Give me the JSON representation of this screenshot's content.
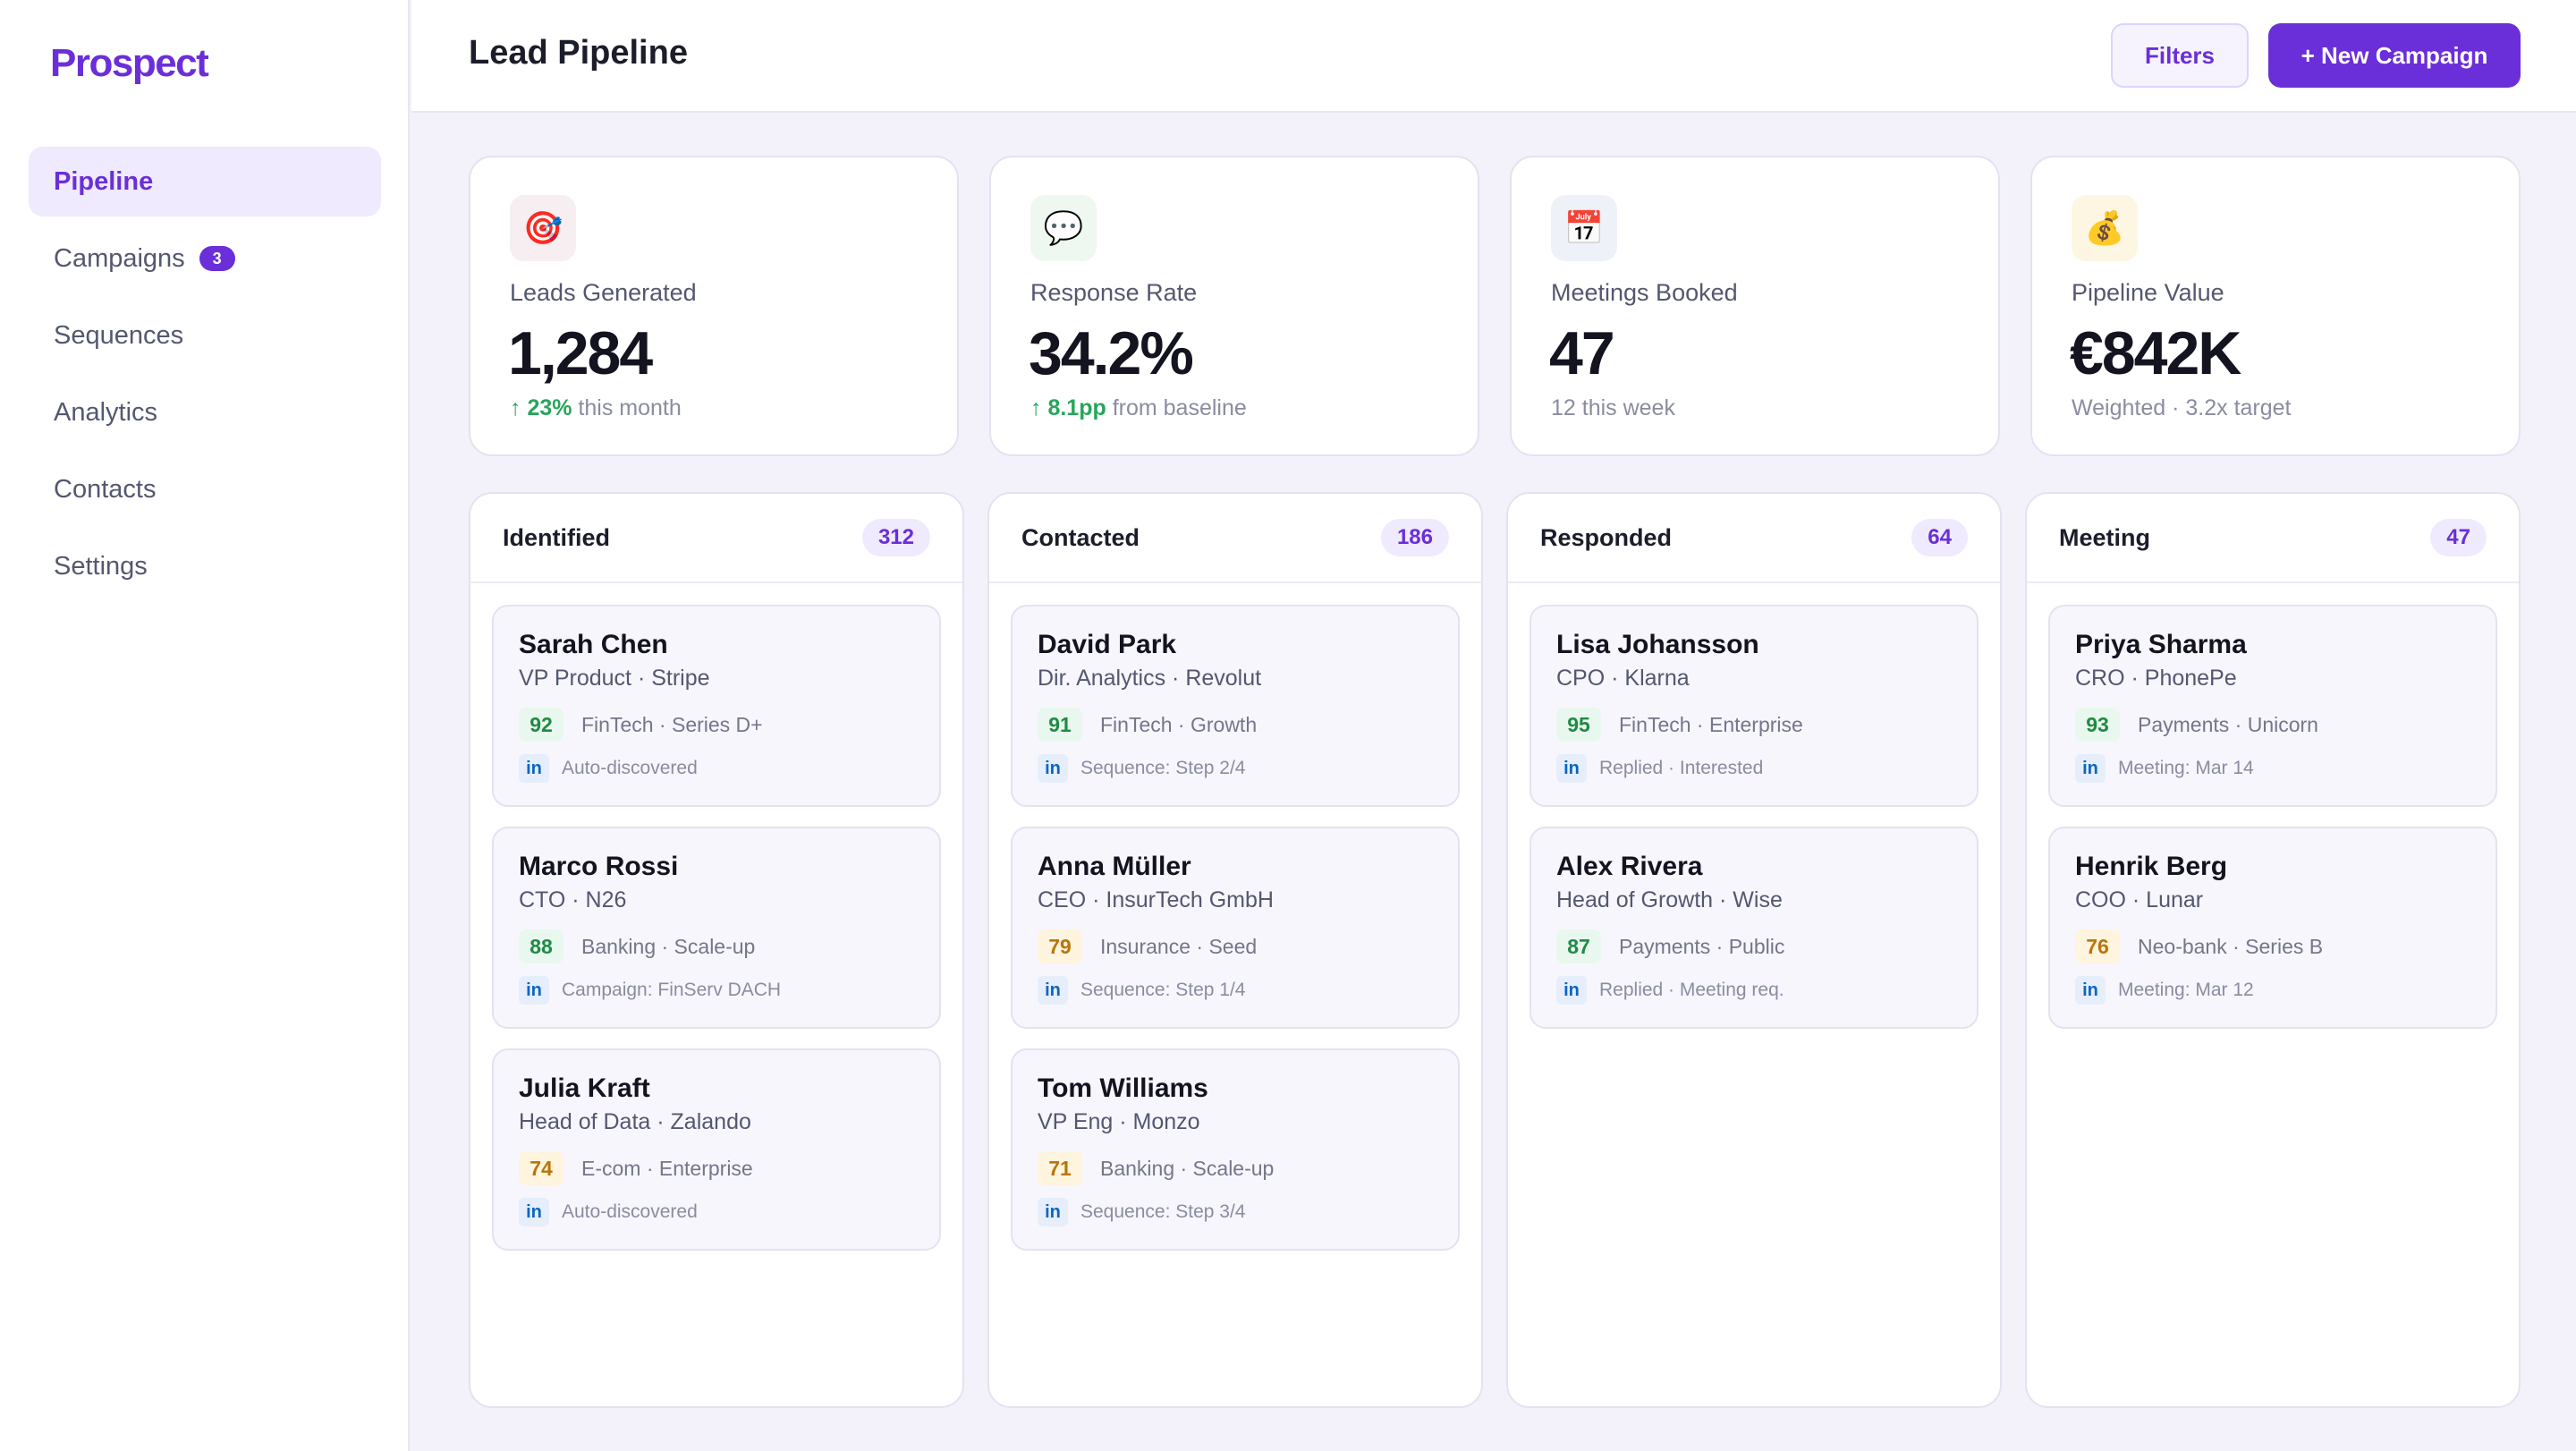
{
  "app": {
    "name": "Prospect"
  },
  "sidebar": {
    "items": [
      {
        "label": "Pipeline",
        "active": true
      },
      {
        "label": "Campaigns",
        "badge": "3"
      },
      {
        "label": "Sequences"
      },
      {
        "label": "Analytics"
      },
      {
        "label": "Contacts"
      },
      {
        "label": "Settings"
      }
    ]
  },
  "header": {
    "title": "Lead Pipeline",
    "filters_label": "Filters",
    "new_campaign_label": "+ New Campaign"
  },
  "stats": [
    {
      "icon": "target-icon",
      "glyph": "🎯",
      "label": "Leads Generated",
      "value": "1,284",
      "delta": "↑ 23%",
      "sub": " this month"
    },
    {
      "icon": "speech-bubble-icon",
      "glyph": "💬",
      "label": "Response Rate",
      "value": "34.2%",
      "delta": "↑ 8.1pp",
      "sub": " from baseline"
    },
    {
      "icon": "calendar-icon",
      "glyph": "📅",
      "label": "Meetings Booked",
      "value": "47",
      "delta": "",
      "sub": "12 this week"
    },
    {
      "icon": "money-bag-icon",
      "glyph": "💰",
      "label": "Pipeline Value",
      "value": "€842K",
      "delta": "",
      "sub": "Weighted · 3.2x target"
    }
  ],
  "columns": [
    {
      "title": "Identified",
      "count": "312",
      "leads": [
        {
          "name": "Sarah Chen",
          "role": "VP Product · Stripe",
          "score": "92",
          "tags": "FinTech · Series D+",
          "source": "Auto-discovered"
        },
        {
          "name": "Marco Rossi",
          "role": "CTO · N26",
          "score": "88",
          "tags": "Banking · Scale-up",
          "source": "Campaign: FinServ DACH"
        },
        {
          "name": "Julia Kraft",
          "role": "Head of Data · Zalando",
          "score": "74",
          "tags": "E-com · Enterprise",
          "source": "Auto-discovered"
        }
      ]
    },
    {
      "title": "Contacted",
      "count": "186",
      "leads": [
        {
          "name": "David Park",
          "role": "Dir. Analytics · Revolut",
          "score": "91",
          "tags": "FinTech · Growth",
          "source": "Sequence: Step 2/4"
        },
        {
          "name": "Anna Müller",
          "role": "CEO · InsurTech GmbH",
          "score": "79",
          "tags": "Insurance · Seed",
          "source": "Sequence: Step 1/4"
        },
        {
          "name": "Tom Williams",
          "role": "VP Eng · Monzo",
          "score": "71",
          "tags": "Banking · Scale-up",
          "source": "Sequence: Step 3/4"
        }
      ]
    },
    {
      "title": "Responded",
      "count": "64",
      "leads": [
        {
          "name": "Lisa Johansson",
          "role": "CPO · Klarna",
          "score": "95",
          "tags": "FinTech · Enterprise",
          "source": "Replied · Interested"
        },
        {
          "name": "Alex Rivera",
          "role": "Head of Growth · Wise",
          "score": "87",
          "tags": "Payments · Public",
          "source": "Replied · Meeting req."
        }
      ]
    },
    {
      "title": "Meeting",
      "count": "47",
      "leads": [
        {
          "name": "Priya Sharma",
          "role": "CRO · PhonePe",
          "score": "93",
          "tags": "Payments · Unicorn",
          "source": "Meeting: Mar 14"
        },
        {
          "name": "Henrik Berg",
          "role": "COO · Lunar",
          "score": "76",
          "tags": "Neo-bank · Series B",
          "source": "Meeting: Mar 12"
        }
      ]
    }
  ],
  "colors": {
    "accent": "#6a2fd8",
    "score_high": "#1f8a45",
    "score_mid": "#b9750b",
    "linkedin": "#0a66c2",
    "stat_icon_bg": [
      "#f7eef2",
      "#eef8f0",
      "#eef1f8",
      "#fdf6e3"
    ]
  },
  "linkedin_glyph": "in"
}
